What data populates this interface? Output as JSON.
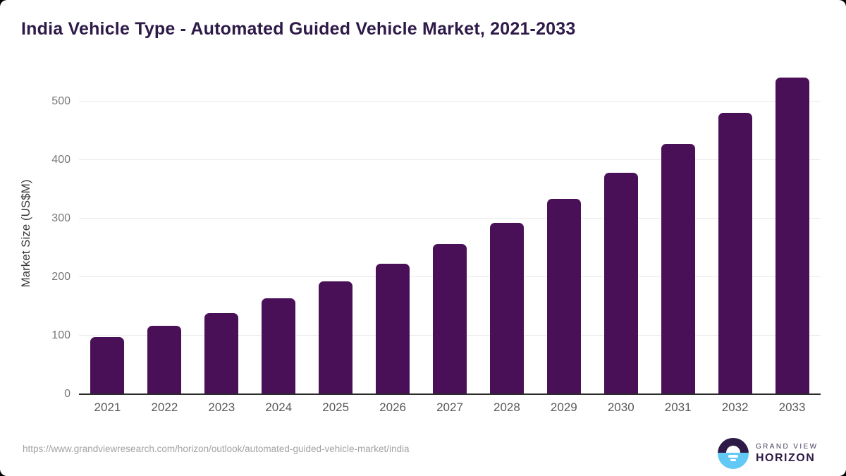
{
  "page": {
    "title": "India Vehicle Type - Automated Guided Vehicle Market, 2021-2033"
  },
  "chart_data": {
    "type": "bar",
    "title": "India Vehicle Type - Automated Guided Vehicle Market, 2021-2033",
    "categories": [
      "2021",
      "2022",
      "2023",
      "2024",
      "2025",
      "2026",
      "2027",
      "2028",
      "2029",
      "2030",
      "2031",
      "2032",
      "2033"
    ],
    "values": [
      97,
      117,
      139,
      164,
      193,
      223,
      256,
      293,
      334,
      378,
      427,
      480,
      541
    ],
    "unit": "US$M",
    "xlabel": "",
    "ylabel": "Market Size (US$M)",
    "yticks": [
      0,
      100,
      200,
      300,
      400,
      500
    ],
    "ylim": [
      0,
      548
    ],
    "grid": "horizontal",
    "legend": "none",
    "bar_color": "#4a1057",
    "gridline_color": "#e9e9e9",
    "axis_line_color": "#2b2b2b"
  },
  "footer": {
    "source_url": "https://www.grandviewresearch.com/horizon/outlook/automated-guided-vehicle-market/india",
    "logo": {
      "line1": "GRAND VIEW",
      "line2": "HORIZON",
      "icon": "sunrise-horizon-icon",
      "purple": "#2e1a47",
      "blue": "#62c9f5"
    }
  }
}
